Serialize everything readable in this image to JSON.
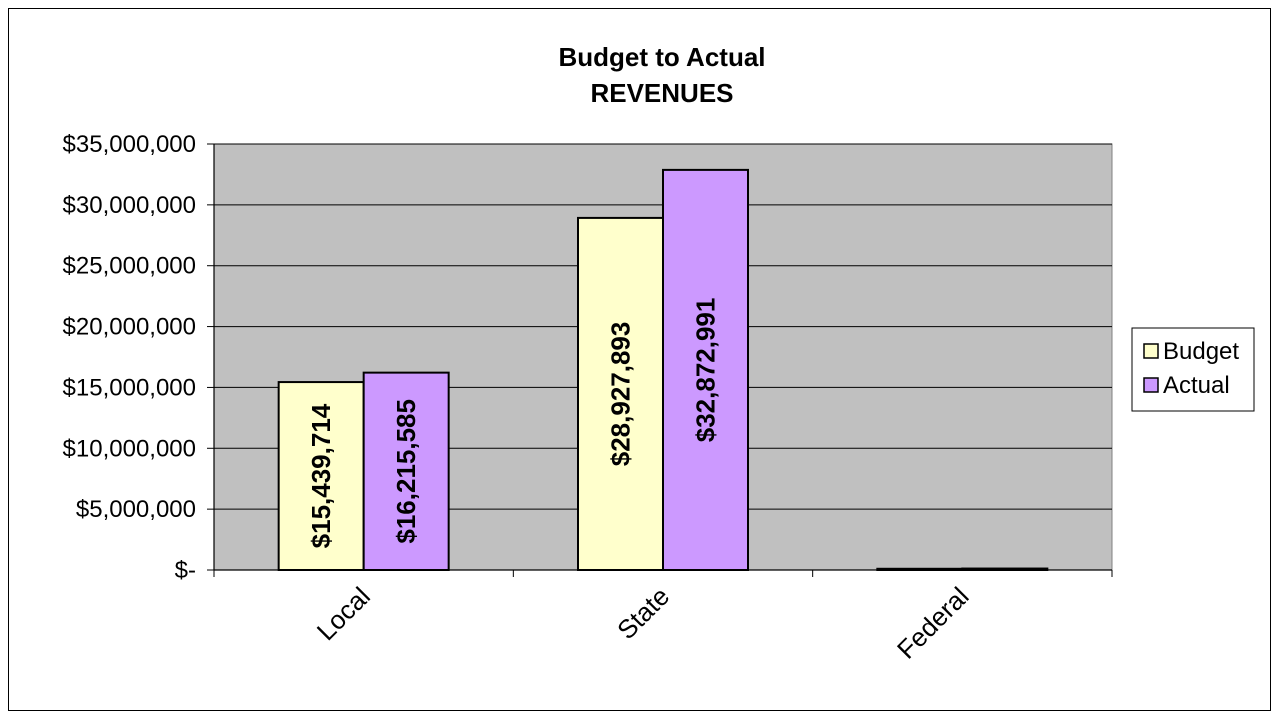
{
  "chart_data": {
    "type": "bar",
    "title": "Budget to Actual",
    "subtitle": "REVENUES",
    "categories": [
      "Local",
      "State",
      "Federal"
    ],
    "series": [
      {
        "name": "Budget",
        "color": "#FFFFCC",
        "values": [
          15439714,
          28927893,
          100000
        ],
        "labels": [
          "$15,439,714",
          "$28,927,893",
          ""
        ]
      },
      {
        "name": "Actual",
        "color": "#CC99FF",
        "values": [
          16215585,
          32872991,
          120000
        ],
        "labels": [
          "$16,215,585",
          "$32,872,991",
          ""
        ]
      }
    ],
    "ylim": [
      0,
      35000000
    ],
    "yticks": [
      0,
      5000000,
      10000000,
      15000000,
      20000000,
      25000000,
      30000000,
      35000000
    ],
    "ytick_labels": [
      "$-",
      "$5,000,000",
      "$10,000,000",
      "$15,000,000",
      "$20,000,000",
      "$25,000,000",
      "$30,000,000",
      "$35,000,000"
    ],
    "xlabel": "",
    "ylabel": "",
    "grid": true,
    "plot_background": "#C0C0C0",
    "legend_position": "right"
  }
}
